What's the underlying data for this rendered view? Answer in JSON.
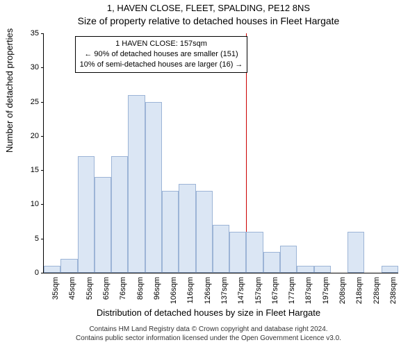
{
  "chart": {
    "type": "bar_histogram",
    "address_line": "1, HAVEN CLOSE, FLEET, SPALDING, PE12 8NS",
    "title": "Size of property relative to detached houses in Fleet Hargate",
    "ylabel": "Number of detached properties",
    "xlabel": "Distribution of detached houses by size in Fleet Hargate",
    "background_color": "#ffffff",
    "bar_fill_color": "#dbe6f4",
    "bar_border_color": "#9cb4d6",
    "marker_color": "#cc0000",
    "axis_color": "#000000",
    "font_family": "Arial",
    "title_fontsize": 14,
    "address_fontsize": 13,
    "label_fontsize": 13,
    "tick_fontsize": 11,
    "callout_fontsize": 11,
    "ylim": [
      0,
      35
    ],
    "ytick_step": 5,
    "yticks": [
      0,
      5,
      10,
      15,
      20,
      25,
      30,
      35
    ],
    "bar_width_rel": 1.0,
    "categories": [
      "35sqm",
      "45sqm",
      "55sqm",
      "65sqm",
      "76sqm",
      "86sqm",
      "96sqm",
      "106sqm",
      "116sqm",
      "126sqm",
      "137sqm",
      "147sqm",
      "157sqm",
      "167sqm",
      "177sqm",
      "187sqm",
      "197sqm",
      "208sqm",
      "218sqm",
      "228sqm",
      "238sqm"
    ],
    "values": [
      1,
      2,
      17,
      14,
      17,
      26,
      25,
      12,
      13,
      12,
      7,
      6,
      6,
      3,
      4,
      1,
      1,
      0,
      6,
      0,
      1
    ],
    "marker_index": 12,
    "callout": {
      "line1": "1 HAVEN CLOSE: 157sqm",
      "line2": "← 90% of detached houses are smaller (151)",
      "line3": "10% of semi-detached houses are larger (16) →"
    },
    "attribution": {
      "line1": "Contains HM Land Registry data © Crown copyright and database right 2024.",
      "line2": "Contains public sector information licensed under the Open Government Licence v3.0."
    }
  }
}
